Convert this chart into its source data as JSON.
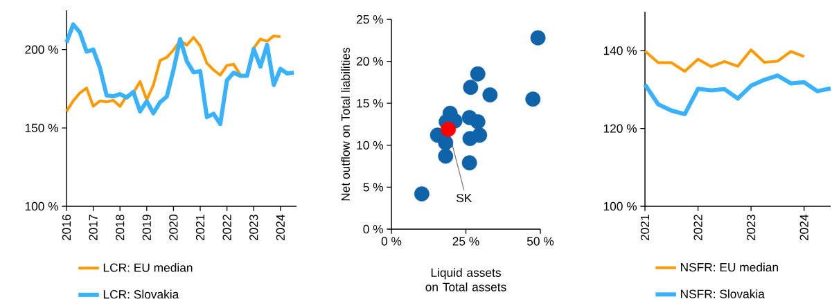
{
  "chart_data": [
    {
      "type": "line",
      "x": [
        2016,
        2016.25,
        2016.5,
        2016.75,
        2017,
        2017.25,
        2017.5,
        2017.75,
        2018,
        2018.25,
        2018.5,
        2018.75,
        2019,
        2019.25,
        2019.5,
        2019.75,
        2020,
        2020.25,
        2020.5,
        2020.75,
        2021,
        2021.25,
        2021.5,
        2021.75,
        2022,
        2022.25,
        2022.5,
        2022.75,
        2023,
        2023.25,
        2023.5,
        2023.75,
        2024,
        2024.25,
        2024.5
      ],
      "xlim": [
        2016,
        2024.6
      ],
      "xticks": [
        2016,
        2017,
        2018,
        2019,
        2020,
        2021,
        2022,
        2023,
        2024
      ],
      "ylim": [
        100,
        225
      ],
      "yticks": [
        {
          "value": 100,
          "label": "100 %"
        },
        {
          "value": 150,
          "label": "150 %"
        },
        {
          "value": 200,
          "label": "200 %"
        }
      ],
      "legend": "bottom",
      "marker": "none",
      "line_style": "solid",
      "series": [
        {
          "name": "LCR: EU median",
          "color": "#ff9900",
          "values": [
            160.6,
            167.2,
            172.3,
            175.5,
            163.8,
            167.2,
            166.7,
            167.6,
            163.8,
            170.5,
            172.3,
            179.6,
            167.9,
            177.4,
            193.1,
            195,
            199.7,
            205.7,
            202.8,
            207.8,
            202.3,
            191.3,
            187,
            183.7,
            189.9,
            190.6,
            184,
            null,
            200.9,
            206.7,
            205.3,
            208.7,
            208.2,
            null,
            null
          ]
        },
        {
          "name": "LCR: Slovakia",
          "color": "#38b1ff",
          "values": [
            204.5,
            216,
            211,
            198.7,
            200,
            188.4,
            170.8,
            170.1,
            171.6,
            169.4,
            173,
            160.6,
            167,
            159.4,
            166.4,
            170,
            187,
            206.7,
            192.5,
            185.5,
            186.2,
            156.9,
            159,
            152.5,
            180.4,
            185.2,
            183.3,
            183.3,
            200.4,
            189.1,
            203,
            177.4,
            187.7,
            184.8,
            185.2
          ]
        }
      ]
    },
    {
      "type": "scatter",
      "xlabel": "Liquid assets on Total assets",
      "ylabel": "Net outflow on Total liabilities",
      "xlim": [
        0,
        50
      ],
      "xticks": [
        {
          "value": 0,
          "label": "0 %"
        },
        {
          "value": 25,
          "label": "25 %"
        },
        {
          "value": 50,
          "label": "50 %"
        }
      ],
      "ylim": [
        0,
        25
      ],
      "yticks": [
        {
          "value": 0,
          "label": "0 %"
        },
        {
          "value": 5,
          "label": "5 %"
        },
        {
          "value": 10,
          "label": "10 %"
        },
        {
          "value": 15,
          "label": "15 %"
        },
        {
          "value": 20,
          "label": "20 %"
        },
        {
          "value": 25,
          "label": "25 %"
        }
      ],
      "marker": "circle",
      "series": [
        {
          "color": "#0f63a8",
          "x": [
            49.2,
            29.0,
            26.6,
            33.1,
            47.5,
            19.7,
            18.4,
            21.3,
            26.2,
            29.0,
            15.5,
            18.2,
            26.4,
            29.6,
            18.2,
            26.2,
            10.2
          ],
          "values": [
            22.8,
            18.5,
            16.9,
            16.0,
            15.5,
            13.8,
            12.8,
            12.9,
            13.3,
            12.8,
            11.2,
            10.3,
            10.8,
            11.2,
            8.7,
            7.9,
            4.2
          ]
        },
        {
          "color": "#ff0000",
          "x": [
            19.1
          ],
          "values": [
            11.9
          ]
        }
      ],
      "annotations": [
        {
          "text": "SK",
          "x": 19.1,
          "y": 11.9
        }
      ]
    },
    {
      "type": "line",
      "x": [
        2021,
        2021.25,
        2021.5,
        2021.75,
        2022,
        2022.25,
        2022.5,
        2022.75,
        2023,
        2023.25,
        2023.5,
        2023.75,
        2024,
        2024.25,
        2024.5
      ],
      "xlim": [
        2021,
        2024.5
      ],
      "xticks": [
        2021,
        2022,
        2023,
        2024
      ],
      "ylim": [
        100,
        150
      ],
      "yticks": [
        {
          "value": 100,
          "label": "100 %"
        },
        {
          "value": 120,
          "label": "120 %"
        },
        {
          "value": 140,
          "label": "140 %"
        }
      ],
      "legend": "bottom",
      "marker": "none",
      "line_style": "solid",
      "series": [
        {
          "name": "NSFR: EU median",
          "color": "#ff9900",
          "values": [
            139.9,
            136.9,
            136.9,
            134.7,
            137.8,
            135.9,
            137.2,
            136.0,
            140.2,
            137.0,
            137.3,
            139.8,
            138.5,
            null,
            null
          ]
        },
        {
          "name": "NSFR: Slovakia",
          "color": "#38b1ff",
          "values": [
            131.3,
            126.2,
            124.6,
            123.7,
            130.2,
            129.8,
            130.1,
            127.7,
            131.0,
            132.5,
            133.6,
            131.6,
            131.9,
            129.6,
            130.3
          ]
        }
      ]
    }
  ]
}
